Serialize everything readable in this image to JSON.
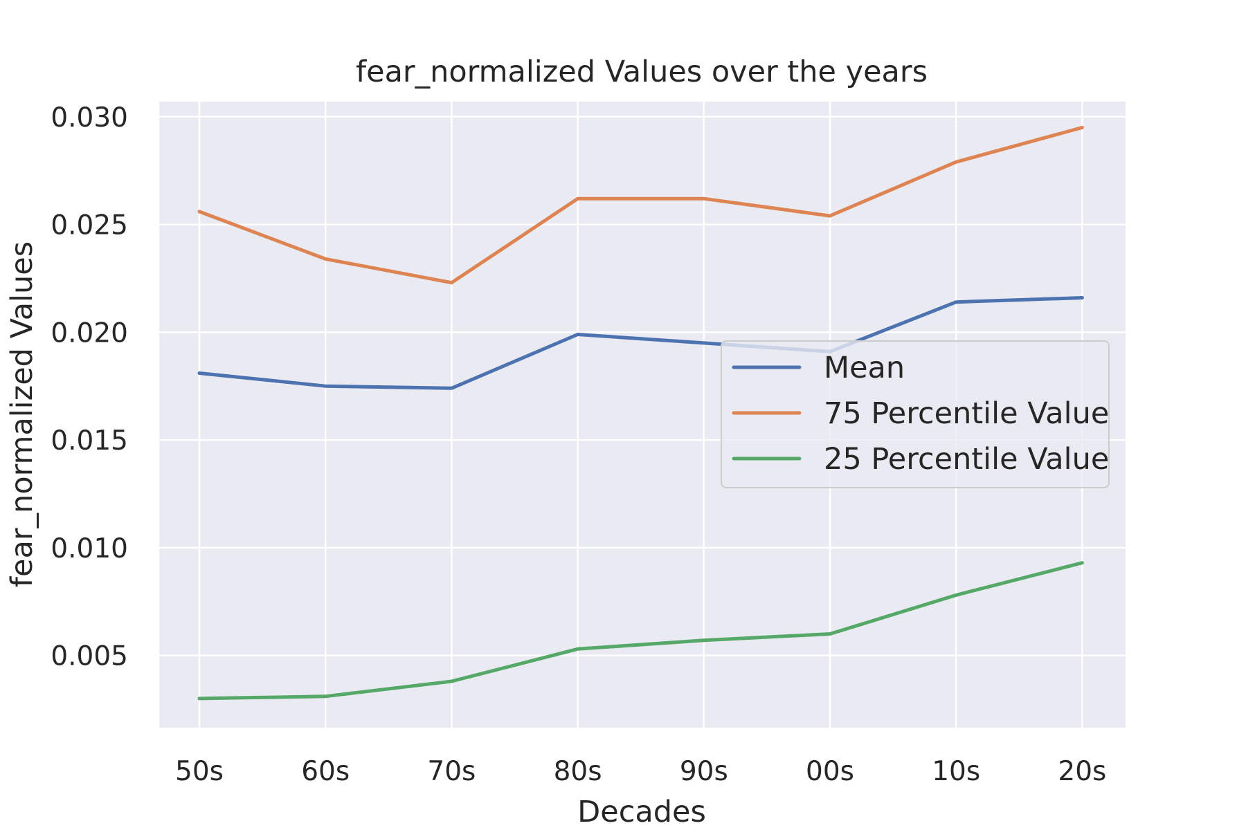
{
  "chart_data": {
    "type": "line",
    "title": "fear_normalized Values over the years",
    "xlabel": "Decades",
    "ylabel": "fear_normalized Values",
    "categories": [
      "50s",
      "60s",
      "70s",
      "80s",
      "90s",
      "00s",
      "10s",
      "20s"
    ],
    "series": [
      {
        "name": "Mean",
        "color": "#4c72b0",
        "values": [
          0.0181,
          0.0175,
          0.0174,
          0.0199,
          0.0195,
          0.0191,
          0.0214,
          0.0216
        ]
      },
      {
        "name": "75 Percentile Value",
        "color": "#dd8452",
        "values": [
          0.0256,
          0.0234,
          0.0223,
          0.0262,
          0.0262,
          0.0254,
          0.0279,
          0.0295
        ]
      },
      {
        "name": "25 Percentile Value",
        "color": "#55a868",
        "values": [
          0.003,
          0.0031,
          0.0038,
          0.0053,
          0.0057,
          0.006,
          0.0078,
          0.0093
        ]
      }
    ],
    "yticks": [
      "0.005",
      "0.010",
      "0.015",
      "0.020",
      "0.025",
      "0.030"
    ],
    "ylim": [
      0.00165,
      0.0307
    ],
    "grid": true,
    "legend_position": "center-right",
    "background": "#eaeaf2"
  }
}
